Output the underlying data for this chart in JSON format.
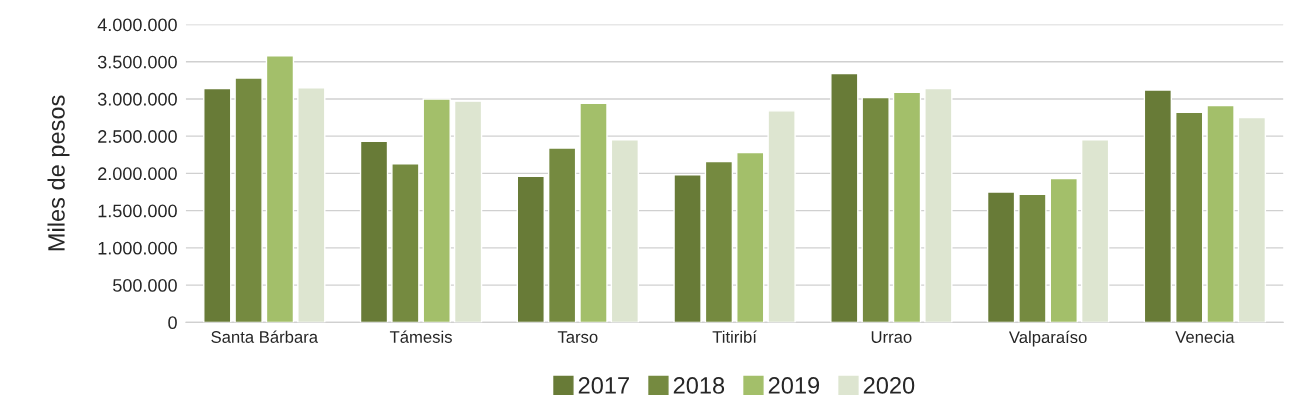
{
  "chart_data": {
    "type": "bar",
    "ylabel": "Miles de pesos",
    "categories": [
      "Santa Bárbara",
      "Támesis",
      "Tarso",
      "Titiribí",
      "Urrao",
      "Valparaíso",
      "Venecia"
    ],
    "series": [
      {
        "name": "2017",
        "color": "#687b37",
        "values": [
          3140000,
          2430000,
          1960000,
          1980000,
          3340000,
          1750000,
          3120000
        ]
      },
      {
        "name": "2018",
        "color": "#758a40",
        "values": [
          3280000,
          2130000,
          2340000,
          2160000,
          3020000,
          1720000,
          2820000
        ]
      },
      {
        "name": "2019",
        "color": "#a3bf6a",
        "values": [
          3580000,
          3000000,
          2940000,
          2280000,
          3090000,
          1930000,
          2910000
        ]
      },
      {
        "name": "2020",
        "color": "#dde5d0",
        "values": [
          3150000,
          2970000,
          2450000,
          2840000,
          3140000,
          2450000,
          2750000
        ]
      }
    ],
    "ylim": [
      0,
      4000000
    ],
    "yticks": [
      {
        "value": 0,
        "label": "0"
      },
      {
        "value": 500000,
        "label": "500.000"
      },
      {
        "value": 1000000,
        "label": "1.000.000"
      },
      {
        "value": 1500000,
        "label": "1.500.000"
      },
      {
        "value": 2000000,
        "label": "2.000.000"
      },
      {
        "value": 2500000,
        "label": "2.500.000"
      },
      {
        "value": 3000000,
        "label": "3.000.000"
      },
      {
        "value": 3500000,
        "label": "3.500.000"
      },
      {
        "value": 4000000,
        "label": "4.000.000"
      }
    ],
    "grid": "y",
    "legend": "bottom"
  }
}
